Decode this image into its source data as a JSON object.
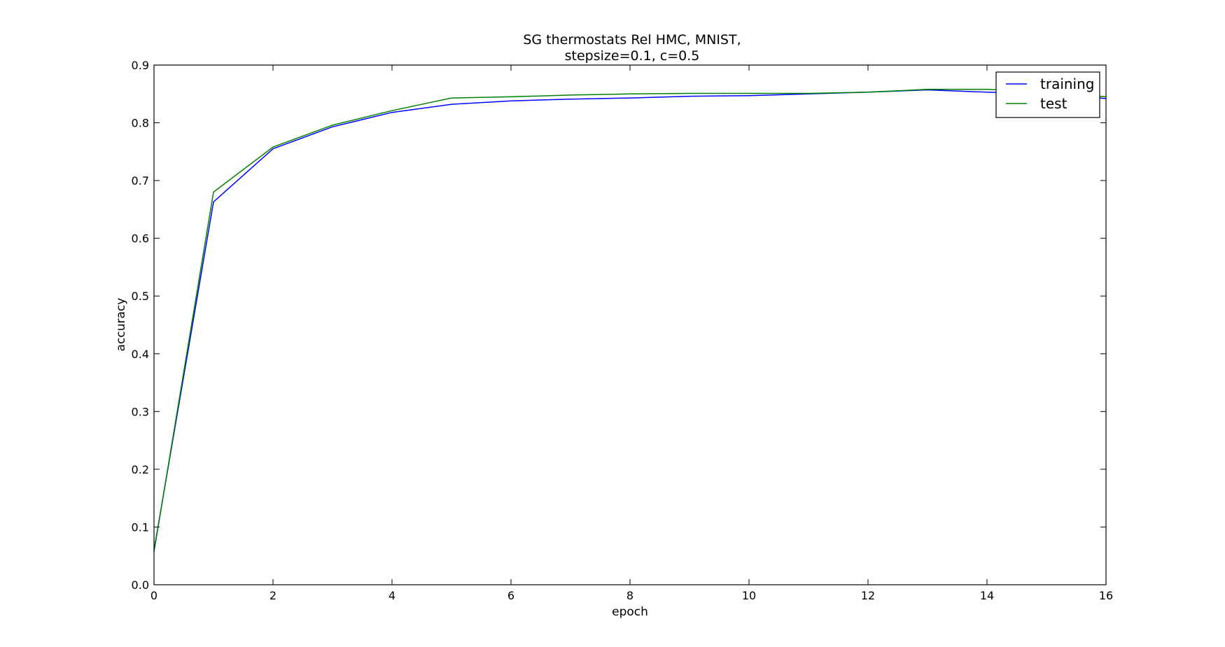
{
  "chart_data": {
    "type": "line",
    "title_lines": [
      "SG thermostats Rel HMC, MNIST,",
      "stepsize=0.1, c=0.5"
    ],
    "xlabel": "epoch",
    "ylabel": "accuracy",
    "xlim": [
      0,
      16
    ],
    "ylim": [
      0,
      0.9
    ],
    "xticks": [
      0,
      2,
      4,
      6,
      8,
      10,
      12,
      14,
      16
    ],
    "yticks": [
      0.0,
      0.1,
      0.2,
      0.3,
      0.4,
      0.5,
      0.6,
      0.7,
      0.8,
      0.9
    ],
    "xtick_labels": [
      "0",
      "2",
      "4",
      "6",
      "8",
      "10",
      "12",
      "14",
      "16"
    ],
    "ytick_labels": [
      "0.0",
      "0.1",
      "0.2",
      "0.3",
      "0.4",
      "0.5",
      "0.6",
      "0.7",
      "0.8",
      "0.9"
    ],
    "grid": false,
    "legend_position": "top-right",
    "x": [
      0,
      1,
      2,
      3,
      4,
      5,
      6,
      7,
      8,
      9,
      10,
      11,
      12,
      13,
      14,
      15,
      16
    ],
    "series": [
      {
        "name": "training",
        "color": "#0000ff",
        "values": [
          0.06,
          0.663,
          0.755,
          0.793,
          0.818,
          0.832,
          0.838,
          0.841,
          0.843,
          0.846,
          0.847,
          0.85,
          0.853,
          0.857,
          0.853,
          0.85,
          0.842
        ]
      },
      {
        "name": "test",
        "color": "#008000",
        "values": [
          0.057,
          0.68,
          0.758,
          0.796,
          0.821,
          0.843,
          0.845,
          0.848,
          0.85,
          0.851,
          0.851,
          0.851,
          0.853,
          0.858,
          0.858,
          0.853,
          0.845
        ]
      }
    ]
  }
}
